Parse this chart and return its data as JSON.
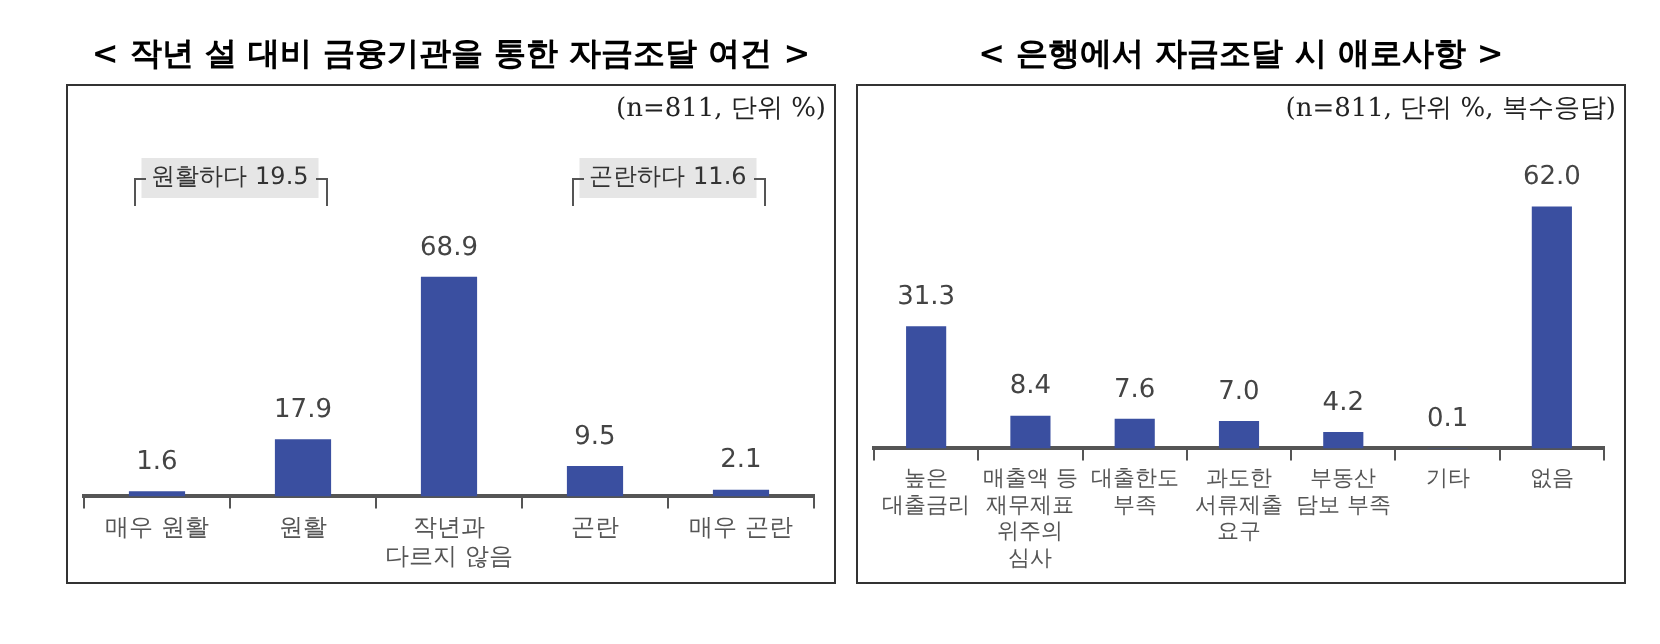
{
  "chart_data": [
    {
      "type": "bar",
      "title": "< 작년 설 대비 금융기관을 통한 자금조달 여건 >",
      "subtitle": "(n=811, 단위 %)",
      "categories": [
        "매우 원활",
        "원활",
        "작년과 다르지 않음",
        "곤란",
        "매우 곤란"
      ],
      "values": [
        1.6,
        17.9,
        68.9,
        9.5,
        2.1
      ],
      "value_labels": [
        "1.6",
        "17.9",
        "68.9",
        "9.5",
        "2.1"
      ],
      "color": "#3a4fa0",
      "annotations": [
        "원활하다 19.5",
        "곤란하다 11.6"
      ],
      "legend": false,
      "grid": false
    },
    {
      "type": "bar",
      "title": "< 은행에서 자금조달 시 애로사항 >",
      "subtitle": "(n=811, 단위 %, 복수응답)",
      "categories": [
        "높은 대출금리",
        "매출액 등 재무제표 위주의 심사",
        "대출한도 부족",
        "과도한 서류제출 요구",
        "부동산 담보 부족",
        "기타",
        "없음"
      ],
      "values": [
        31.3,
        8.4,
        7.6,
        7.0,
        4.2,
        0.1,
        62.0
      ],
      "value_labels": [
        "31.3",
        "8.4",
        "7.6",
        "7.0",
        "4.2",
        "0.1",
        "62.0"
      ],
      "color": "#3a4fa0",
      "legend": false,
      "grid": false
    }
  ]
}
